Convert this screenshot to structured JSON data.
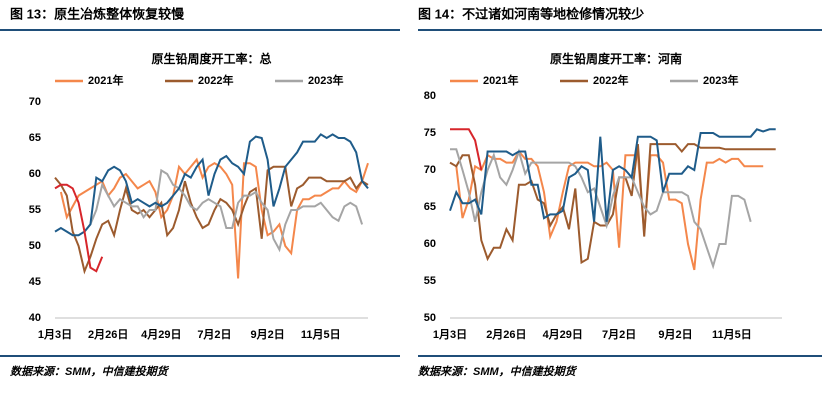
{
  "chart_data": [
    {
      "type": "line",
      "figure_title": "图 13：原生冶炼整体恢复较慢",
      "title": "原生铅周度开工率：总",
      "source": "数据来源：SMM，中信建投期货",
      "categories": [
        "1月3日",
        null,
        null,
        null,
        null,
        null,
        null,
        null,
        null,
        "2月26日",
        null,
        null,
        null,
        null,
        null,
        null,
        null,
        null,
        "4月29日",
        null,
        null,
        null,
        null,
        null,
        null,
        null,
        null,
        "7月2日",
        null,
        null,
        null,
        null,
        null,
        null,
        null,
        null,
        "9月2日",
        null,
        null,
        null,
        null,
        null,
        null,
        null,
        null,
        "11月5日",
        null,
        null,
        null,
        null,
        null,
        null,
        null,
        null
      ],
      "ylim": [
        40,
        70
      ],
      "yticks": [
        40,
        45,
        50,
        55,
        60,
        65,
        70
      ],
      "series": [
        {
          "name": "2021年",
          "color": "#f4874b",
          "values": [
            null,
            57.5,
            54,
            55.5,
            57,
            57.5,
            58,
            58.5,
            59,
            57,
            58,
            59.5,
            60,
            59,
            58,
            58.5,
            59,
            57.5,
            54,
            55,
            57,
            61,
            60,
            61,
            62,
            59.5,
            61,
            61.5,
            61,
            60,
            58.5,
            45.5,
            61.5,
            61.5,
            61,
            55,
            51.5,
            52,
            53,
            50,
            49,
            55,
            56.5,
            56.5,
            57,
            57,
            57.5,
            58,
            58,
            59,
            58,
            57.5,
            59,
            61.5
          ]
        },
        {
          "name": "2022年",
          "color": "#9c5b2e",
          "values": [
            59.5,
            58.5,
            57,
            52,
            50,
            46.5,
            48.5,
            51,
            53,
            53.5,
            51.5,
            55,
            58,
            55,
            54.5,
            55,
            54,
            55,
            56,
            51.5,
            52.5,
            55,
            59,
            56,
            54,
            52.5,
            53,
            55,
            56.5,
            56,
            55,
            53,
            55.5,
            57.5,
            58,
            51,
            60.5,
            61,
            61,
            61,
            55.5,
            58,
            58.5,
            59.5,
            59.5,
            59.5,
            59,
            59,
            59,
            59,
            59.5,
            58,
            59,
            58.5
          ]
        },
        {
          "name": "2023年",
          "color": "#a5a5a5",
          "values": [
            null,
            null,
            null,
            null,
            null,
            52,
            53,
            55,
            58.5,
            57,
            55.5,
            56.5,
            56,
            55.5,
            55.5,
            54,
            55,
            55,
            60.5,
            60,
            58.5,
            58,
            57,
            55.5,
            55,
            56,
            56.5,
            56,
            55.5,
            52.5,
            52.5,
            56,
            57,
            57,
            57.5,
            56,
            55,
            51,
            49.5,
            53,
            55,
            55,
            55.5,
            55.5,
            55.5,
            56,
            55,
            54,
            53.5,
            55.5,
            56,
            55.5,
            53,
            null
          ]
        },
        {
          "color": "#1f5c8a",
          "values": [
            52,
            52.5,
            52,
            51.5,
            51.5,
            52,
            53,
            59.5,
            59,
            60.5,
            61,
            60.5,
            59,
            56,
            56.5,
            56,
            55.5,
            56,
            55.5,
            56,
            57,
            58,
            60,
            59.5,
            61,
            62,
            57,
            60,
            62,
            62.5,
            61.5,
            61,
            60,
            64.5,
            65.2,
            65,
            62,
            55.5,
            58,
            61,
            62,
            63,
            64.5,
            64.5,
            64.5,
            65.5,
            65,
            65.5,
            65,
            65,
            64.5,
            63,
            59,
            58
          ]
        },
        {
          "color": "#d7262b",
          "values": [
            58,
            58.5,
            58.5,
            58,
            56,
            52,
            47,
            46.5,
            48.5,
            null,
            null,
            null,
            null,
            null,
            null,
            null,
            null,
            null,
            null,
            null,
            null,
            null,
            null,
            null,
            null,
            null,
            null,
            null,
            null,
            null,
            null,
            null,
            null,
            null,
            null,
            null,
            null,
            null,
            null,
            null,
            null,
            null,
            null,
            null,
            null,
            null,
            null,
            null,
            null,
            null,
            null,
            null,
            null,
            null
          ]
        }
      ]
    },
    {
      "type": "line",
      "figure_title": "图 14：不过诸如河南等地检修情况较少",
      "title": "原生铅周度开工率：河南",
      "source": "数据来源：SMM，中信建投期货",
      "categories": [
        "1月3日",
        null,
        null,
        null,
        null,
        null,
        null,
        null,
        null,
        "2月26日",
        null,
        null,
        null,
        null,
        null,
        null,
        null,
        null,
        "4月29日",
        null,
        null,
        null,
        null,
        null,
        null,
        null,
        null,
        "7月2日",
        null,
        null,
        null,
        null,
        null,
        null,
        null,
        null,
        "9月2日",
        null,
        null,
        null,
        null,
        null,
        null,
        null,
        null,
        "11月5日",
        null,
        null,
        null,
        null,
        null,
        null,
        null,
        null
      ],
      "ylim": [
        50,
        80
      ],
      "yticks": [
        50,
        55,
        60,
        65,
        70,
        75,
        80
      ],
      "series": [
        {
          "name": "2021年",
          "color": "#f4874b",
          "values": [
            null,
            70.5,
            63.5,
            66,
            70.5,
            70,
            72,
            71.5,
            71.5,
            71,
            71,
            72.5,
            71.5,
            71.5,
            70.5,
            67,
            61,
            63,
            67,
            70.5,
            71,
            71,
            71,
            70.5,
            70.5,
            71,
            70,
            59.5,
            72,
            72,
            72,
            61.5,
            72,
            72,
            71,
            66,
            66,
            65.5,
            60,
            56.5,
            66,
            71,
            71,
            71.5,
            71,
            71.5,
            71.5,
            70.5,
            70.5,
            70.5,
            70.5,
            null,
            null,
            null
          ]
        },
        {
          "name": "2022年",
          "color": "#9c5b2e",
          "values": [
            71,
            70.5,
            72,
            72,
            68,
            60.5,
            58,
            59.5,
            59.5,
            62,
            60.5,
            68,
            68,
            68.5,
            66,
            65.5,
            62.5,
            64,
            65,
            62,
            67.5,
            57.5,
            58,
            63,
            62.5,
            62.5,
            64,
            69,
            69,
            66.5,
            73.5,
            61,
            73.5,
            73.5,
            73.5,
            73.5,
            73.5,
            72.5,
            73.5,
            73.5,
            73,
            73,
            73,
            73,
            72.8,
            72.8,
            72.8,
            72.8,
            72.8,
            72.8,
            72.8,
            72.8,
            72.8,
            null
          ]
        },
        {
          "name": "2023年",
          "color": "#a5a5a5",
          "values": [
            72.8,
            72.8,
            70,
            67,
            63,
            67,
            70,
            72,
            69,
            68,
            70,
            72.5,
            69.5,
            71,
            71,
            71,
            71,
            71,
            71,
            71,
            70.5,
            69,
            67,
            67.5,
            65,
            62.5,
            66.5,
            69,
            69,
            69,
            67,
            65,
            64,
            64.5,
            67,
            67,
            67,
            67,
            66.5,
            63,
            62,
            59.5,
            57,
            60,
            60,
            66.5,
            66.5,
            66,
            63,
            null,
            null,
            null,
            null,
            null
          ]
        },
        {
          "color": "#1f5c8a",
          "values": [
            64.5,
            67,
            65.5,
            65.5,
            66,
            64,
            72.5,
            72.5,
            72.5,
            72.5,
            72,
            72.5,
            72.5,
            68,
            68,
            63.5,
            64,
            64,
            64.5,
            69,
            69.5,
            70.5,
            70,
            63,
            74.5,
            63,
            70,
            70.5,
            70,
            69,
            74.5,
            74.5,
            74.5,
            74,
            67,
            69.5,
            69.5,
            69.5,
            70.5,
            70,
            75,
            75,
            75,
            74.5,
            74.5,
            74.5,
            74.5,
            74.5,
            74.5,
            75.5,
            75.2,
            75.5,
            75.5,
            null
          ]
        },
        {
          "color": "#d7262b",
          "values": [
            75.5,
            75.5,
            75.5,
            75.5,
            74,
            70,
            null,
            null,
            null,
            null,
            null,
            null,
            null,
            null,
            null,
            null,
            null,
            null,
            null,
            null,
            null,
            null,
            null,
            null,
            null,
            null,
            null,
            null,
            null,
            null,
            null,
            null,
            null,
            null,
            null,
            null,
            null,
            null,
            null,
            null,
            null,
            null,
            null,
            null,
            null,
            null,
            null,
            null,
            null,
            null,
            null,
            null,
            null,
            null
          ]
        }
      ]
    }
  ]
}
